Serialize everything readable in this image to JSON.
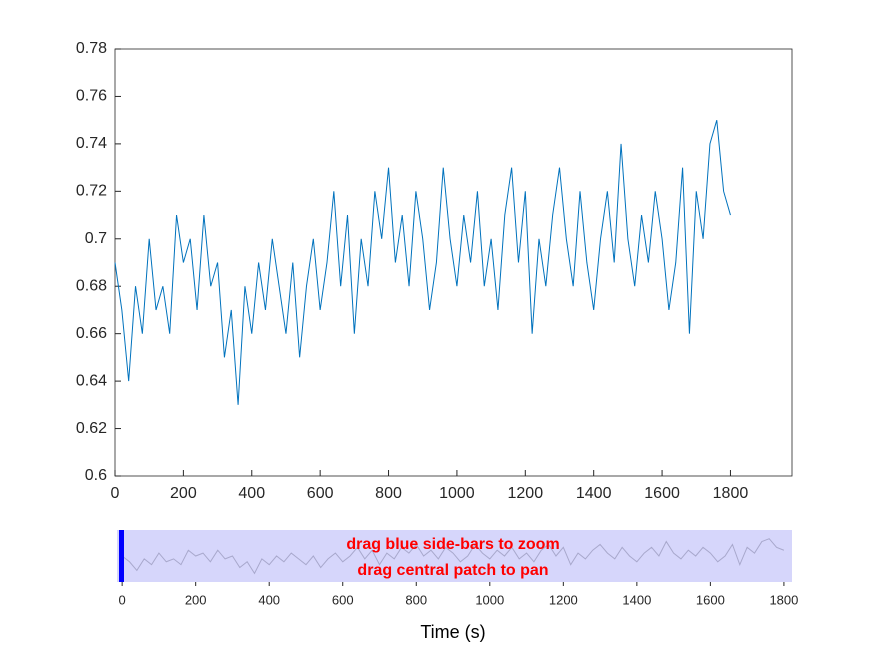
{
  "chart_data": {
    "type": "line",
    "x": [
      0,
      20,
      40,
      60,
      80,
      100,
      120,
      140,
      160,
      180,
      200,
      220,
      240,
      260,
      280,
      300,
      320,
      340,
      360,
      380,
      400,
      420,
      440,
      460,
      480,
      500,
      520,
      540,
      560,
      580,
      600,
      620,
      640,
      660,
      680,
      700,
      720,
      740,
      760,
      780,
      800,
      820,
      840,
      860,
      880,
      900,
      920,
      940,
      960,
      980,
      1000,
      1020,
      1040,
      1060,
      1080,
      1100,
      1120,
      1140,
      1160,
      1180,
      1200,
      1220,
      1240,
      1260,
      1280,
      1300,
      1320,
      1340,
      1360,
      1380,
      1400,
      1420,
      1440,
      1460,
      1480,
      1500,
      1520,
      1540,
      1560,
      1580,
      1600,
      1620,
      1640,
      1660,
      1680,
      1700,
      1720,
      1740,
      1760,
      1780,
      1800
    ],
    "series": [
      {
        "color": "#0072bd",
        "values": [
          0.69,
          0.67,
          0.64,
          0.68,
          0.66,
          0.7,
          0.67,
          0.68,
          0.66,
          0.71,
          0.69,
          0.7,
          0.67,
          0.71,
          0.68,
          0.69,
          0.65,
          0.67,
          0.63,
          0.68,
          0.66,
          0.69,
          0.67,
          0.7,
          0.68,
          0.66,
          0.69,
          0.65,
          0.68,
          0.7,
          0.67,
          0.69,
          0.72,
          0.68,
          0.71,
          0.66,
          0.7,
          0.68,
          0.72,
          0.7,
          0.73,
          0.69,
          0.71,
          0.68,
          0.72,
          0.7,
          0.67,
          0.69,
          0.73,
          0.7,
          0.68,
          0.71,
          0.69,
          0.72,
          0.68,
          0.7,
          0.67,
          0.71,
          0.73,
          0.69,
          0.72,
          0.66,
          0.7,
          0.68,
          0.71,
          0.73,
          0.7,
          0.68,
          0.72,
          0.69,
          0.67,
          0.7,
          0.72,
          0.69,
          0.74,
          0.7,
          0.68,
          0.71,
          0.69,
          0.72,
          0.7,
          0.67,
          0.69,
          0.73,
          0.66,
          0.72,
          0.7,
          0.74,
          0.75,
          0.72,
          0.71
        ]
      }
    ],
    "xlim": [
      0,
      1980
    ],
    "xticks": [
      0,
      200,
      400,
      600,
      800,
      1000,
      1200,
      1400,
      1600,
      1800
    ],
    "ylim": [
      0.6,
      0.78
    ],
    "yticks": [
      0.6,
      0.62,
      0.64,
      0.66,
      0.68,
      0.7,
      0.72,
      0.74,
      0.76,
      0.78
    ],
    "overview": {
      "xlim": [
        -14,
        1822
      ],
      "ylim": [
        0.6,
        0.78
      ],
      "xticks": [
        0,
        200,
        400,
        600,
        800,
        1000,
        1200,
        1400,
        1600,
        1800
      ],
      "line_color": "#a8a8cc",
      "patch_color": "#d6d6fb",
      "handle_color": "#0000ff",
      "xlabel": "Time (s)",
      "hints": [
        "drag blue side-bars to zoom",
        "drag central patch to pan"
      ],
      "hint_color": "#ff0000"
    }
  }
}
